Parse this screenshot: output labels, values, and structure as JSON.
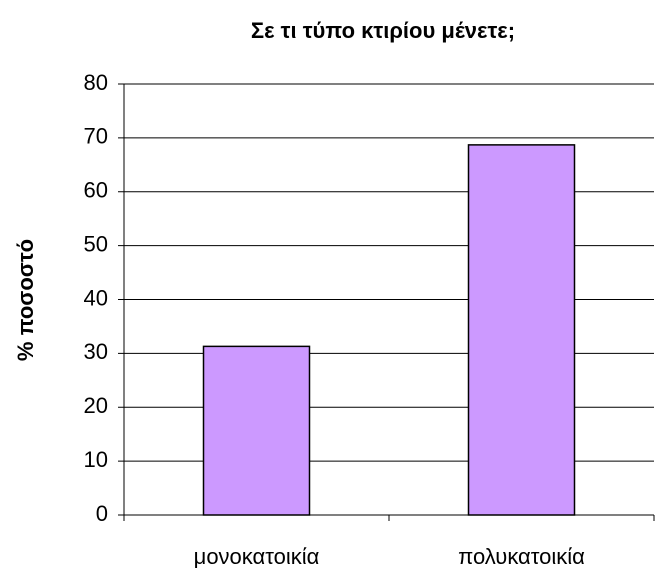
{
  "chart_data": {
    "type": "bar",
    "title": "Σε τι τύπο κτιρίου μένετε;",
    "y_label": "% ποσοστό",
    "categories": [
      "μονοκατοικία",
      "πολυκατοικία"
    ],
    "values": [
      31.3,
      68.7
    ],
    "color": "#cc99ff",
    "ylim": [
      0,
      80
    ],
    "yticks": [
      0,
      10,
      20,
      30,
      40,
      50,
      60,
      70,
      80
    ],
    "grid": true
  }
}
